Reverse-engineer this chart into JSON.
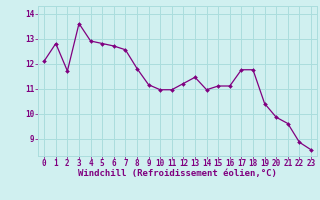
{
  "x": [
    0,
    1,
    2,
    3,
    4,
    5,
    6,
    7,
    8,
    9,
    10,
    11,
    12,
    13,
    14,
    15,
    16,
    17,
    18,
    19,
    20,
    21,
    22,
    23
  ],
  "y": [
    12.1,
    12.8,
    11.7,
    13.6,
    12.9,
    12.8,
    12.7,
    12.55,
    11.8,
    11.15,
    10.95,
    10.95,
    11.2,
    11.45,
    10.95,
    11.1,
    11.1,
    11.75,
    11.75,
    10.4,
    9.85,
    9.6,
    8.85,
    8.55
  ],
  "line_color": "#800080",
  "marker": "D",
  "marker_size": 2.0,
  "background_color": "#d0f0f0",
  "grid_color": "#aadddd",
  "xlabel": "Windchill (Refroidissement éolien,°C)",
  "xlabel_color": "#800080",
  "tick_color": "#800080",
  "ylim": [
    8.3,
    14.3
  ],
  "xlim": [
    -0.5,
    23.5
  ],
  "yticks": [
    9,
    10,
    11,
    12,
    13,
    14
  ],
  "xticks": [
    0,
    1,
    2,
    3,
    4,
    5,
    6,
    7,
    8,
    9,
    10,
    11,
    12,
    13,
    14,
    15,
    16,
    17,
    18,
    19,
    20,
    21,
    22,
    23
  ],
  "xtick_labels": [
    "0",
    "1",
    "2",
    "3",
    "4",
    "5",
    "6",
    "7",
    "8",
    "9",
    "10",
    "11",
    "12",
    "13",
    "14",
    "15",
    "16",
    "17",
    "18",
    "19",
    "20",
    "21",
    "22",
    "23"
  ],
  "ytick_labels": [
    "9",
    "10",
    "11",
    "12",
    "13",
    "14"
  ],
  "tick_fontsize": 5.5,
  "xlabel_fontsize": 6.5
}
